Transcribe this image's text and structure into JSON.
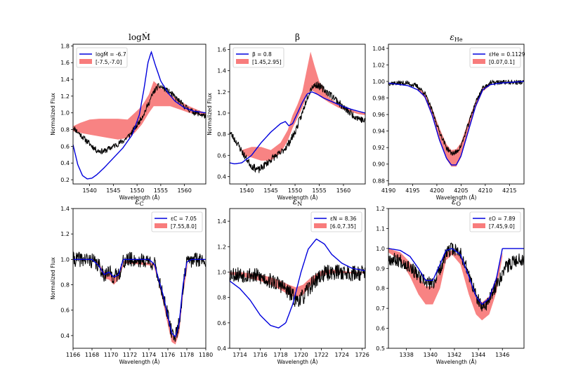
{
  "colors": {
    "model": "#0000dd",
    "band": "#f87c7c",
    "observed": "#000000"
  },
  "chart_data": [
    {
      "type": "line",
      "title": "logṀ",
      "xlabel": "Wavelength (Å)",
      "ylabel": "Normalized Flux",
      "xlim": [
        1536.5,
        1564.5
      ],
      "ylim": [
        0.15,
        1.82
      ],
      "xticks": [
        1540,
        1545,
        1550,
        1555,
        1560
      ],
      "yticks": [
        0.2,
        0.4,
        0.6,
        0.8,
        1.0,
        1.2,
        1.4,
        1.6,
        1.8
      ],
      "ytick_labels": [
        "0.2",
        "0.4",
        "0.6",
        "0.8",
        "1.0",
        "1.2",
        "1.4",
        "1.6",
        "1.8"
      ],
      "legend": {
        "line_label": "logṀ = -6.7",
        "band_label": "[-7.5,-7.0]",
        "position": "upper-left"
      },
      "model": {
        "x": [
          1536.5,
          1537.5,
          1538.5,
          1539.5,
          1540.5,
          1541.5,
          1543,
          1545,
          1547,
          1549,
          1550.5,
          1551.5,
          1552.3,
          1553,
          1553.8,
          1555,
          1556.5,
          1558,
          1560,
          1562,
          1564.5
        ],
        "y": [
          0.62,
          0.38,
          0.25,
          0.21,
          0.22,
          0.26,
          0.34,
          0.46,
          0.58,
          0.74,
          0.98,
          1.3,
          1.6,
          1.73,
          1.58,
          1.38,
          1.24,
          1.14,
          1.06,
          1.02,
          1.0
        ]
      },
      "band": {
        "x": [
          1536.5,
          1538,
          1540,
          1542,
          1544,
          1546,
          1548,
          1549.5,
          1551,
          1552.5,
          1553.5,
          1555,
          1557,
          1559,
          1561,
          1563,
          1564.5
        ],
        "upper": [
          0.84,
          0.88,
          0.92,
          0.93,
          0.93,
          0.93,
          0.92,
          1.0,
          1.08,
          1.22,
          1.38,
          1.3,
          1.22,
          1.14,
          1.08,
          1.03,
          1.0
        ],
        "lower": [
          0.78,
          0.76,
          0.74,
          0.72,
          0.7,
          0.68,
          0.7,
          0.76,
          0.86,
          1.0,
          1.08,
          1.08,
          1.08,
          1.04,
          1.0,
          0.98,
          0.97
        ]
      },
      "observed": {
        "x": [
          1536.5,
          1538,
          1540,
          1541.5,
          1543,
          1545,
          1547,
          1548.5,
          1550,
          1551.5,
          1552.5,
          1553.5,
          1554.5,
          1555.5,
          1557,
          1558.5,
          1560,
          1561.5,
          1563,
          1564.5
        ],
        "y": [
          0.83,
          0.74,
          0.63,
          0.55,
          0.54,
          0.6,
          0.66,
          0.74,
          0.85,
          1.0,
          1.12,
          1.25,
          1.32,
          1.3,
          1.24,
          1.16,
          1.08,
          1.02,
          0.99,
          0.96
        ],
        "noise": 0.035,
        "seed": 11
      }
    },
    {
      "type": "line",
      "title": "β",
      "xlabel": "Wavelength (Å)",
      "ylabel": "Normalized Flux",
      "xlim": [
        1536.5,
        1564.5
      ],
      "ylim": [
        0.33,
        1.65
      ],
      "xticks": [
        1540,
        1545,
        1550,
        1555,
        1560
      ],
      "yticks": [
        0.4,
        0.6,
        0.8,
        1.0,
        1.2,
        1.4,
        1.6
      ],
      "ytick_labels": [
        "0.4",
        "0.6",
        "0.8",
        "1.0",
        "1.2",
        "1.4",
        "1.6"
      ],
      "legend": {
        "line_label": "β = 0.8",
        "band_label": "[1.45,2.95]",
        "position": "upper-left"
      },
      "model": {
        "x": [
          1536.5,
          1537.5,
          1539,
          1541,
          1543,
          1545,
          1547,
          1548,
          1548.7,
          1549.5,
          1550.5,
          1551.5,
          1552.5,
          1553.5,
          1554.5,
          1556,
          1558,
          1560,
          1562,
          1564.5
        ],
        "y": [
          0.53,
          0.52,
          0.53,
          0.6,
          0.72,
          0.82,
          0.9,
          0.92,
          0.88,
          0.9,
          1.0,
          1.1,
          1.18,
          1.2,
          1.18,
          1.14,
          1.1,
          1.06,
          1.03,
          1.0
        ]
      },
      "band": {
        "x": [
          1539,
          1541,
          1543,
          1545,
          1547,
          1548.5,
          1549.5,
          1550.5,
          1551.5,
          1552.3,
          1553.2,
          1554,
          1555,
          1557,
          1559,
          1561,
          1563,
          1564.5
        ],
        "upper": [
          0.65,
          0.68,
          0.68,
          0.65,
          0.72,
          0.84,
          0.98,
          1.08,
          1.2,
          1.38,
          1.58,
          1.45,
          1.3,
          1.15,
          1.08,
          1.04,
          1.01,
          1.0
        ],
        "lower": [
          0.6,
          0.58,
          0.55,
          0.55,
          0.62,
          0.74,
          0.86,
          0.95,
          1.05,
          1.15,
          1.22,
          1.2,
          1.16,
          1.1,
          1.05,
          1.02,
          0.99,
          0.98
        ]
      },
      "observed": {
        "x": [
          1536.5,
          1538,
          1539.5,
          1541,
          1542.5,
          1544,
          1545.5,
          1547,
          1548.5,
          1550,
          1551.5,
          1552.5,
          1553.5,
          1554.5,
          1556,
          1558,
          1560,
          1562,
          1564.5
        ],
        "y": [
          0.82,
          0.72,
          0.6,
          0.5,
          0.46,
          0.52,
          0.58,
          0.62,
          0.7,
          0.82,
          1.0,
          1.15,
          1.25,
          1.27,
          1.22,
          1.15,
          1.05,
          0.98,
          0.92
        ],
        "noise": 0.035,
        "seed": 23
      }
    },
    {
      "type": "line",
      "title": "εHe",
      "title_main": "ε",
      "title_sub": "He",
      "xlabel": "Wavelength (Å)",
      "ylabel": "",
      "xlim": [
        4190,
        4218
      ],
      "ylim": [
        0.876,
        1.045
      ],
      "xticks": [
        4190,
        4195,
        4200,
        4205,
        4210,
        4215
      ],
      "yticks": [
        0.88,
        0.9,
        0.92,
        0.94,
        0.96,
        0.98,
        1.0,
        1.02,
        1.04
      ],
      "ytick_labels": [
        "0.88",
        "0.90",
        "0.92",
        "0.94",
        "0.96",
        "0.98",
        "1.00",
        "1.02",
        "1.04"
      ],
      "legend": {
        "line_label": "εHe = 0.1129",
        "band_label": "[0.07,0.1]",
        "position": "upper-right"
      },
      "model": {
        "x": [
          4190,
          4194,
          4196,
          4197.5,
          4199,
          4200.5,
          4202,
          4203,
          4204,
          4205,
          4206.5,
          4208,
          4209.5,
          4211,
          4213,
          4218
        ],
        "y": [
          0.998,
          0.995,
          0.99,
          0.982,
          0.96,
          0.93,
          0.907,
          0.899,
          0.899,
          0.91,
          0.94,
          0.97,
          0.99,
          0.996,
          0.998,
          1.0
        ]
      },
      "band": {
        "x": [
          4196,
          4197.5,
          4199,
          4200.5,
          4202,
          4203,
          4204,
          4205,
          4206.5,
          4208,
          4209.5,
          4211
        ],
        "upper": [
          0.993,
          0.986,
          0.968,
          0.944,
          0.924,
          0.917,
          0.918,
          0.926,
          0.952,
          0.976,
          0.992,
          0.998
        ],
        "lower": [
          0.99,
          0.98,
          0.958,
          0.928,
          0.906,
          0.897,
          0.897,
          0.908,
          0.938,
          0.968,
          0.988,
          0.995
        ]
      },
      "observed": {
        "x": [
          4190,
          4194,
          4196,
          4197.5,
          4199,
          4200.5,
          4202,
          4203,
          4204,
          4205,
          4206.5,
          4208,
          4209.5,
          4211,
          4213,
          4218
        ],
        "y": [
          0.998,
          0.998,
          0.994,
          0.986,
          0.965,
          0.94,
          0.92,
          0.913,
          0.914,
          0.922,
          0.948,
          0.975,
          0.992,
          0.998,
          0.999,
          0.999
        ],
        "noise": 0.003,
        "seed": 37
      }
    },
    {
      "type": "line",
      "title": "εC",
      "title_main": "ε",
      "title_sub": "C",
      "xlabel": "Wavelength (Å)",
      "ylabel": "Normalized Flux",
      "xlim": [
        1166,
        1180
      ],
      "ylim": [
        0.3,
        1.4
      ],
      "xticks": [
        1166,
        1168,
        1170,
        1172,
        1174,
        1176,
        1178,
        1180
      ],
      "yticks": [
        0.4,
        0.6,
        0.8,
        1.0,
        1.2,
        1.4
      ],
      "ytick_labels": [
        "0.4",
        "0.6",
        "0.8",
        "1.0",
        "1.2",
        "1.4"
      ],
      "legend": {
        "line_label": "εC = 7.05",
        "band_label": "[7.55,8.0]",
        "position": "upper-right"
      },
      "model": {
        "x": [
          1166,
          1168,
          1168.7,
          1169.3,
          1169.8,
          1170.3,
          1170.8,
          1171.3,
          1172,
          1174,
          1174.6,
          1175,
          1175.5,
          1176,
          1176.4,
          1176.8,
          1177.2,
          1177.6,
          1178,
          1178.5,
          1180
        ],
        "y": [
          1.0,
          1.0,
          0.95,
          0.88,
          0.9,
          0.86,
          0.88,
          1.0,
          1.0,
          1.0,
          0.96,
          0.85,
          0.72,
          0.55,
          0.42,
          0.39,
          0.5,
          0.8,
          0.98,
          1.0,
          1.0
        ]
      },
      "band": {
        "x": [
          1168.5,
          1169.3,
          1169.8,
          1170.3,
          1170.8,
          1171.4,
          1174.5,
          1175,
          1175.5,
          1176,
          1176.4,
          1176.8,
          1177.2,
          1177.6,
          1178.1
        ],
        "upper": [
          0.99,
          0.9,
          0.89,
          0.86,
          0.88,
          0.99,
          0.97,
          0.86,
          0.72,
          0.55,
          0.41,
          0.38,
          0.48,
          0.78,
          0.98
        ],
        "lower": [
          0.98,
          0.85,
          0.84,
          0.8,
          0.84,
          0.97,
          0.95,
          0.82,
          0.66,
          0.48,
          0.35,
          0.33,
          0.42,
          0.72,
          0.96
        ]
      },
      "observed": {
        "x": [
          1166,
          1167,
          1168,
          1168.7,
          1169.3,
          1169.8,
          1170.3,
          1170.8,
          1171.3,
          1172,
          1173,
          1174,
          1174.6,
          1175,
          1175.5,
          1176,
          1176.4,
          1176.8,
          1177.2,
          1177.6,
          1178,
          1179,
          1180
        ],
        "y": [
          1.0,
          1.0,
          0.99,
          0.95,
          0.88,
          0.9,
          0.86,
          0.88,
          0.98,
          1.0,
          0.99,
          0.99,
          0.96,
          0.85,
          0.72,
          0.55,
          0.42,
          0.4,
          0.5,
          0.78,
          0.98,
          1.0,
          1.0
        ],
        "noise": 0.06,
        "seed": 41
      }
    },
    {
      "type": "line",
      "title": "εN",
      "title_main": "ε",
      "title_sub": "N",
      "xlabel": "Wavelength (Å)",
      "ylabel": "",
      "xlim": [
        1713,
        1726.3
      ],
      "ylim": [
        0.4,
        1.5
      ],
      "xticks": [
        1714,
        1716,
        1718,
        1720,
        1722,
        1724,
        1726
      ],
      "yticks": [
        0.4,
        0.6,
        0.8,
        1.0,
        1.2,
        1.4
      ],
      "ytick_labels": [
        "0.4",
        "0.6",
        "0.8",
        "1.0",
        "1.2",
        "1.4"
      ],
      "legend": {
        "line_label": "εN = 8.36",
        "band_label": "[6.0,7.35]",
        "position": "upper-right"
      },
      "model": {
        "x": [
          1713,
          1714,
          1715,
          1716,
          1717,
          1717.8,
          1718.5,
          1719.2,
          1720,
          1720.7,
          1721.5,
          1722.3,
          1723,
          1724,
          1725,
          1726.3
        ],
        "y": [
          0.93,
          0.87,
          0.78,
          0.66,
          0.58,
          0.56,
          0.6,
          0.75,
          1.0,
          1.18,
          1.26,
          1.22,
          1.14,
          1.07,
          1.03,
          1.01
        ]
      },
      "band": {
        "x": [
          1713,
          1714,
          1715,
          1716,
          1717,
          1718,
          1718.8,
          1719.5,
          1720.2,
          1721,
          1722,
          1723,
          1724,
          1725,
          1726.3
        ],
        "upper": [
          1.0,
          1.0,
          0.99,
          0.98,
          0.96,
          0.93,
          0.9,
          0.88,
          0.9,
          0.96,
          1.01,
          1.02,
          1.01,
          1.0,
          1.0
        ],
        "lower": [
          0.98,
          0.97,
          0.95,
          0.93,
          0.9,
          0.86,
          0.82,
          0.8,
          0.82,
          0.9,
          0.97,
          0.99,
          0.99,
          0.99,
          0.99
        ]
      },
      "observed": {
        "x": [
          1713,
          1714,
          1715,
          1716,
          1717,
          1718,
          1718.8,
          1719.5,
          1720.2,
          1721,
          1722,
          1723,
          1724,
          1725,
          1726.3
        ],
        "y": [
          0.99,
          0.98,
          0.98,
          0.96,
          0.93,
          0.9,
          0.84,
          0.78,
          0.8,
          0.9,
          0.98,
          1.0,
          1.0,
          0.99,
          1.0
        ],
        "noise": 0.065,
        "seed": 53
      }
    },
    {
      "type": "line",
      "title": "εO",
      "title_main": "ε",
      "title_sub": "O",
      "xlabel": "Wavelength (Å)",
      "ylabel": "",
      "xlim": [
        1336.5,
        1347.8
      ],
      "ylim": [
        0.5,
        1.2
      ],
      "xticks": [
        1338,
        1340,
        1342,
        1344,
        1346
      ],
      "yticks": [
        0.5,
        0.6,
        0.7,
        0.8,
        0.9,
        1.0,
        1.1,
        1.2
      ],
      "ytick_labels": [
        "0.5",
        "0.6",
        "0.7",
        "0.8",
        "0.9",
        "1.0",
        "1.1",
        "1.2"
      ],
      "legend": {
        "line_label": "εO = 7.89",
        "band_label": "[7.45,9.0]",
        "position": "upper-right"
      },
      "model": {
        "x": [
          1336.5,
          1337.5,
          1338.3,
          1339,
          1339.6,
          1340.2,
          1340.8,
          1341.3,
          1341.8,
          1342.5,
          1343.2,
          1343.8,
          1344.3,
          1344.9,
          1345.5,
          1346,
          1347.8
        ],
        "y": [
          1.0,
          0.99,
          0.96,
          0.9,
          0.84,
          0.84,
          0.92,
          0.99,
          1.0,
          0.97,
          0.86,
          0.76,
          0.72,
          0.75,
          0.85,
          1.0,
          1.0
        ]
      },
      "band": {
        "x": [
          1336.5,
          1337.5,
          1338.3,
          1339,
          1339.6,
          1340.2,
          1340.8,
          1341.3,
          1341.8,
          1342.5,
          1343.2,
          1343.8,
          1344.3,
          1344.9,
          1345.5,
          1346
        ],
        "upper": [
          1.0,
          0.98,
          0.93,
          0.86,
          0.81,
          0.81,
          0.89,
          0.98,
          0.99,
          0.96,
          0.85,
          0.76,
          0.73,
          0.76,
          0.86,
          0.98
        ],
        "lower": [
          0.98,
          0.94,
          0.86,
          0.77,
          0.72,
          0.72,
          0.8,
          0.94,
          0.97,
          0.92,
          0.77,
          0.67,
          0.64,
          0.67,
          0.78,
          0.96
        ]
      },
      "observed": {
        "x": [
          1336.5,
          1337.5,
          1338.3,
          1339,
          1339.6,
          1340.2,
          1340.8,
          1341.3,
          1341.8,
          1342.5,
          1343.2,
          1343.8,
          1344.3,
          1344.9,
          1345.5,
          1346.2,
          1347,
          1347.8
        ],
        "y": [
          0.95,
          0.94,
          0.91,
          0.86,
          0.83,
          0.82,
          0.9,
          0.97,
          1.0,
          0.98,
          0.87,
          0.76,
          0.7,
          0.74,
          0.82,
          0.9,
          0.94,
          0.95
        ],
        "noise": 0.035,
        "seed": 67
      }
    }
  ]
}
